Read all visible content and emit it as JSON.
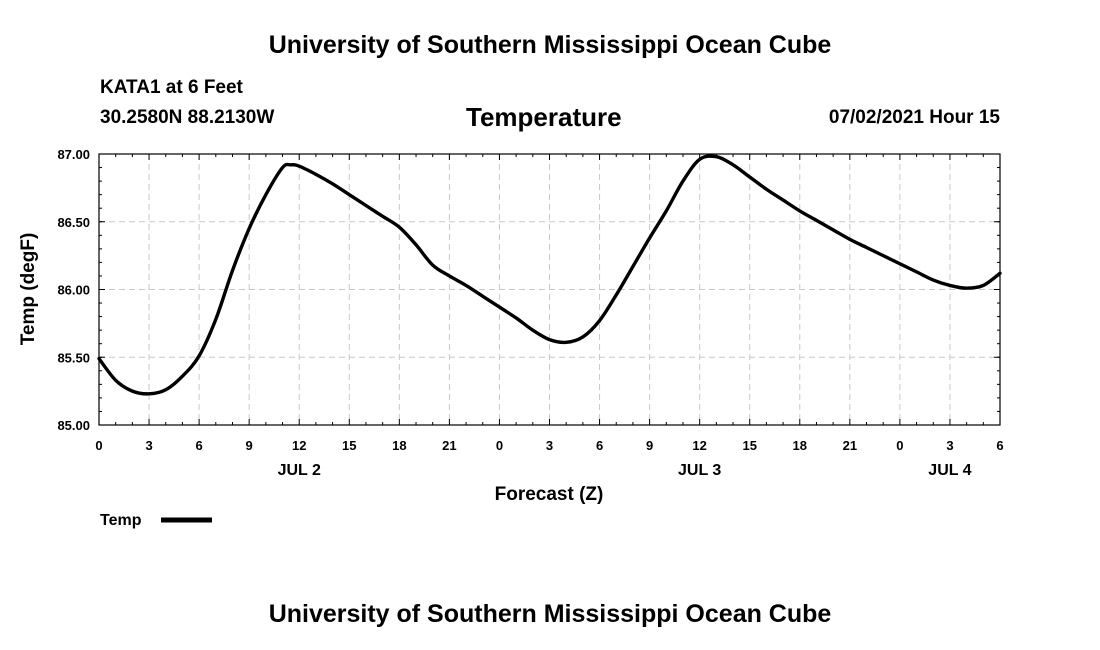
{
  "header": {
    "title": "University of Southern Mississippi Ocean Cube",
    "station": "KATA1 at 6 Feet",
    "coordinates": "30.2580N  88.2130W",
    "chart_title": "Temperature",
    "datetime": "07/02/2021 Hour 15"
  },
  "footer": {
    "title": "University of Southern Mississippi Ocean Cube"
  },
  "chart_data": {
    "type": "line",
    "title": "Temperature",
    "xlabel": "Forecast (Z)",
    "ylabel": "Temp (degF)",
    "ylim": [
      85.0,
      87.0
    ],
    "xlim": [
      0,
      54
    ],
    "y_ticks": [
      "85.00",
      "85.50",
      "86.00",
      "86.50",
      "87.00"
    ],
    "x_tick_labels": [
      "0",
      "3",
      "6",
      "9",
      "12",
      "15",
      "18",
      "21",
      "0",
      "3",
      "6",
      "9",
      "12",
      "15",
      "18",
      "21",
      "0",
      "3",
      "6"
    ],
    "date_labels": [
      {
        "hour": 12,
        "label": "JUL 2"
      },
      {
        "hour": 36,
        "label": "JUL 3"
      },
      {
        "hour": 51,
        "label": "JUL 4"
      }
    ],
    "grid": true,
    "legend": {
      "placement": "bottom-left",
      "entries": [
        "Temp"
      ]
    },
    "line_color": "#000000",
    "series": [
      {
        "name": "Temp",
        "x": [
          0,
          1,
          2,
          3,
          4,
          5,
          6,
          7,
          8,
          9,
          10,
          11,
          11.5,
          12,
          13,
          14,
          15,
          16,
          17,
          18,
          19,
          20,
          21,
          22,
          23,
          24,
          25,
          26,
          27,
          28,
          29,
          30,
          31,
          32,
          33,
          34,
          35,
          36,
          37,
          38,
          39,
          40,
          41,
          42,
          43,
          44,
          45,
          46,
          47,
          48,
          49,
          50,
          51,
          52,
          53,
          54
        ],
        "values": [
          85.49,
          85.33,
          85.25,
          85.23,
          85.26,
          85.36,
          85.51,
          85.78,
          86.14,
          86.45,
          86.7,
          86.9,
          86.92,
          86.91,
          86.85,
          86.78,
          86.7,
          86.62,
          86.54,
          86.46,
          86.33,
          86.18,
          86.1,
          86.03,
          85.95,
          85.87,
          85.79,
          85.7,
          85.63,
          85.61,
          85.65,
          85.77,
          85.96,
          86.17,
          86.38,
          86.58,
          86.8,
          86.96,
          86.98,
          86.92,
          86.83,
          86.74,
          86.66,
          86.58,
          86.51,
          86.44,
          86.37,
          86.31,
          86.25,
          86.19,
          86.13,
          86.07,
          86.03,
          86.01,
          86.03,
          86.12
        ]
      }
    ]
  }
}
